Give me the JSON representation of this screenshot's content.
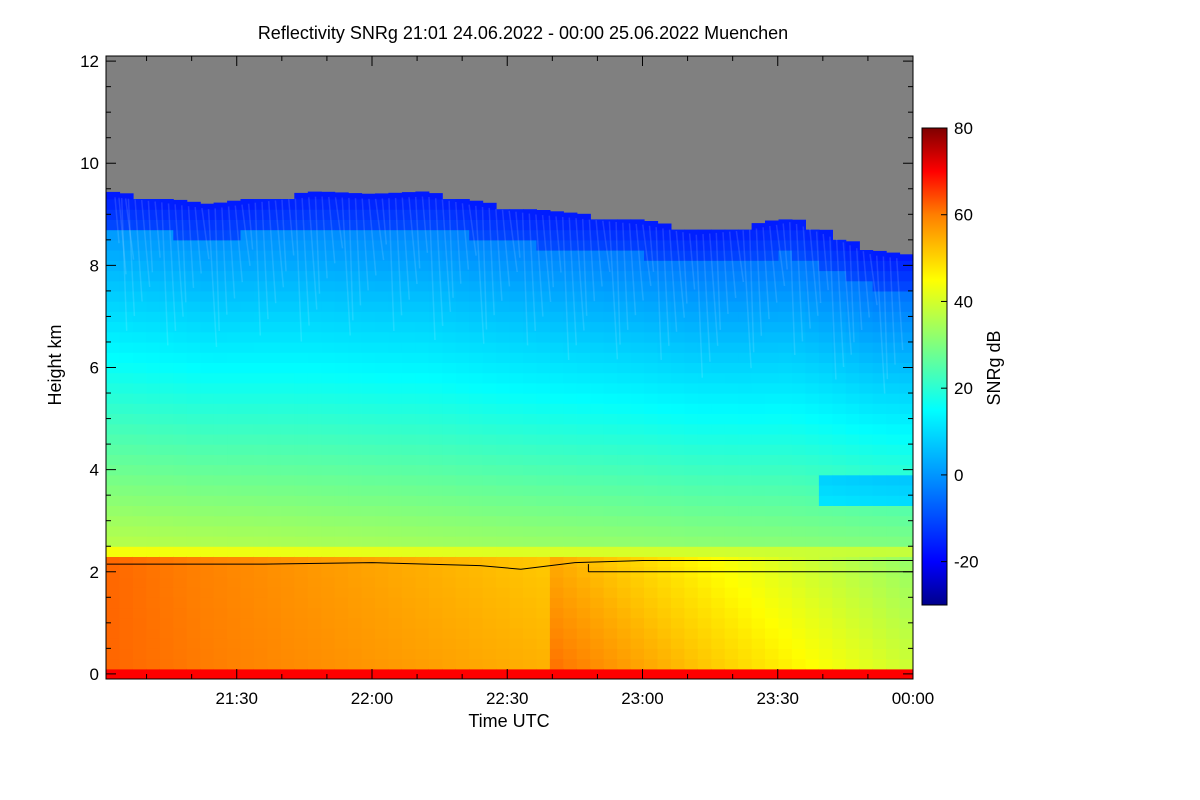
{
  "chart_data": {
    "type": "heatmap",
    "title": "Reflectivity SNRg   21:01 24.06.2022 - 00:00 25.06.2022 Muenchen",
    "xlabel": "Time UTC",
    "ylabel": "Height km",
    "colorbar_label": "SNRg dB",
    "x_range_hours": [
      21.0167,
      24.0
    ],
    "x_ticks": [
      {
        "value": 21.5,
        "label": "21:30"
      },
      {
        "value": 22.0,
        "label": "22:00"
      },
      {
        "value": 22.5,
        "label": "22:30"
      },
      {
        "value": 23.0,
        "label": "23:00"
      },
      {
        "value": 23.5,
        "label": "23:30"
      },
      {
        "value": 24.0,
        "label": "00:00"
      }
    ],
    "y_range_km": [
      -0.1,
      12.1
    ],
    "y_ticks": [
      {
        "value": 0,
        "label": "0"
      },
      {
        "value": 2,
        "label": "2"
      },
      {
        "value": 4,
        "label": "4"
      },
      {
        "value": 6,
        "label": "6"
      },
      {
        "value": 8,
        "label": "8"
      },
      {
        "value": 10,
        "label": "10"
      },
      {
        "value": 12,
        "label": "12"
      }
    ],
    "colorbar_range_db": [
      -30,
      80
    ],
    "colorbar_ticks": [
      {
        "value": 80,
        "label": "80"
      },
      {
        "value": 60,
        "label": "60"
      },
      {
        "value": 40,
        "label": "40"
      },
      {
        "value": 20,
        "label": "20"
      },
      {
        "value": 0,
        "label": "0"
      },
      {
        "value": -20,
        "label": "-20"
      }
    ],
    "colormap_stops": [
      {
        "value": -30,
        "color": "#00008b"
      },
      {
        "value": -20,
        "color": "#0000ff"
      },
      {
        "value": 0,
        "color": "#0096ff"
      },
      {
        "value": 15,
        "color": "#00ffff"
      },
      {
        "value": 30,
        "color": "#7fff7f"
      },
      {
        "value": 45,
        "color": "#ffff00"
      },
      {
        "value": 60,
        "color": "#ff7f00"
      },
      {
        "value": 70,
        "color": "#ff0000"
      },
      {
        "value": 80,
        "color": "#7f0000"
      }
    ],
    "no_data_color": "#808080",
    "signal_top_km": [
      {
        "t": 21.02,
        "h": 9.45
      },
      {
        "t": 21.2,
        "h": 9.35
      },
      {
        "t": 21.4,
        "h": 9.2
      },
      {
        "t": 21.6,
        "h": 9.35
      },
      {
        "t": 21.8,
        "h": 9.45
      },
      {
        "t": 22.0,
        "h": 9.4
      },
      {
        "t": 22.2,
        "h": 9.45
      },
      {
        "t": 22.4,
        "h": 9.25
      },
      {
        "t": 22.6,
        "h": 9.1
      },
      {
        "t": 22.8,
        "h": 9.0
      },
      {
        "t": 23.0,
        "h": 8.9
      },
      {
        "t": 23.2,
        "h": 8.7
      },
      {
        "t": 23.4,
        "h": 8.8
      },
      {
        "t": 23.55,
        "h": 8.95
      },
      {
        "t": 23.7,
        "h": 8.65
      },
      {
        "t": 23.85,
        "h": 8.3
      },
      {
        "t": 24.0,
        "h": 8.2
      }
    ],
    "boundary_layer_lines_km": {
      "upper": [
        {
          "t": 21.02,
          "h": 2.15
        },
        {
          "t": 21.6,
          "h": 2.15
        },
        {
          "t": 22.0,
          "h": 2.18
        },
        {
          "t": 22.4,
          "h": 2.12
        },
        {
          "t": 22.55,
          "h": 2.05
        },
        {
          "t": 22.75,
          "h": 2.18
        },
        {
          "t": 23.0,
          "h": 2.22
        },
        {
          "t": 23.3,
          "h": 2.22
        },
        {
          "t": 24.0,
          "h": 2.22
        }
      ],
      "lower": [
        {
          "t": 22.8,
          "h": 2.0
        },
        {
          "t": 24.0,
          "h": 2.0
        }
      ]
    }
  }
}
